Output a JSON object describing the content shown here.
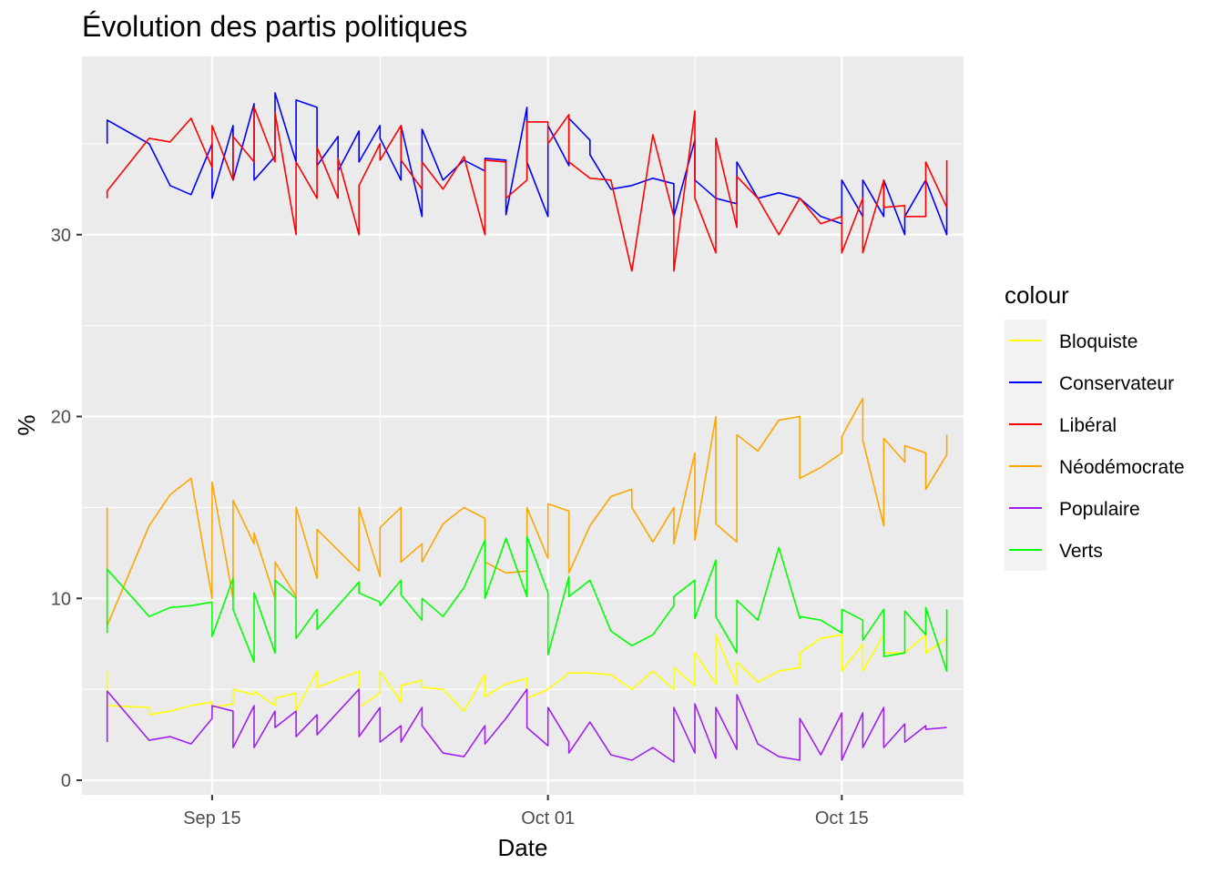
{
  "chart_data": {
    "type": "line",
    "title": "Évolution des partis politiques",
    "xlabel": "Date",
    "ylabel": "%",
    "x_ticks": [
      {
        "label": "Sep 15",
        "day": 15
      },
      {
        "label": "Oct 01",
        "day": 31
      },
      {
        "label": "Oct 15",
        "day": 45
      }
    ],
    "xlim_days": [
      8.8,
      50.8
    ],
    "y_ticks": [
      0,
      10,
      20,
      30
    ],
    "ylim": [
      -0.8,
      39.8
    ],
    "legend": {
      "title": "colour",
      "position": "right"
    },
    "series": [
      {
        "name": "Bloquiste",
        "color": "#ffff00",
        "days": [
          10,
          10,
          12,
          12,
          13,
          14,
          15,
          15,
          16,
          16,
          17,
          17,
          18,
          18,
          19,
          19,
          20,
          20,
          22,
          22,
          23,
          23,
          24,
          24,
          25,
          25,
          26,
          27,
          28,
          28,
          29,
          30,
          30,
          31,
          32,
          33,
          34,
          35,
          36,
          37,
          37,
          38,
          38,
          39,
          39,
          40,
          40,
          41,
          42,
          43,
          43,
          44,
          45,
          45,
          46,
          46,
          47,
          47,
          48,
          49,
          49,
          50
        ],
        "values": [
          6.0,
          4.1,
          4.0,
          3.6,
          3.8,
          4.1,
          4.3,
          4.0,
          4.2,
          5.0,
          4.7,
          4.9,
          4.1,
          4.5,
          4.8,
          3.8,
          6.0,
          5.1,
          6.0,
          4.0,
          4.8,
          6.0,
          4.3,
          5.2,
          5.5,
          5.1,
          5.0,
          3.8,
          5.8,
          4.6,
          5.3,
          5.6,
          4.5,
          5.0,
          5.9,
          5.9,
          5.8,
          5.0,
          6.0,
          5.0,
          6.2,
          5.2,
          7.0,
          5.3,
          8.0,
          5.2,
          6.5,
          5.4,
          6.0,
          6.2,
          7.0,
          7.8,
          8.0,
          6.0,
          7.5,
          6.0,
          8.0,
          7.0,
          7.0,
          8.0,
          7.0,
          7.8
        ]
      },
      {
        "name": "Conservateur",
        "color": "#0000ff",
        "days": [
          10,
          10,
          12,
          13,
          14,
          15,
          15,
          16,
          16,
          17,
          17,
          18,
          18,
          19,
          19,
          20,
          20,
          21,
          21,
          22,
          22,
          23,
          23,
          24,
          24,
          25,
          25,
          26,
          27,
          28,
          28,
          29,
          29,
          30,
          30,
          31,
          31,
          32,
          32,
          33,
          33,
          34,
          35,
          36,
          37,
          37,
          38,
          38,
          39,
          40,
          40,
          41,
          42,
          43,
          44,
          45,
          45,
          46,
          46,
          47,
          47,
          48,
          48,
          49,
          50,
          50
        ],
        "values": [
          35.0,
          36.3,
          35.0,
          32.7,
          32.2,
          35.0,
          32.0,
          36.0,
          33.0,
          37.2,
          33.0,
          34.3,
          37.8,
          34.0,
          37.4,
          37.0,
          33.8,
          35.4,
          33.5,
          35.7,
          34.0,
          36.0,
          35.3,
          33.0,
          36.0,
          31.0,
          35.8,
          33.0,
          34.1,
          33.5,
          34.2,
          34.1,
          31.1,
          37.0,
          34.0,
          31.0,
          36.0,
          33.8,
          36.4,
          35.2,
          34.4,
          32.5,
          32.7,
          33.1,
          32.8,
          31.0,
          35.2,
          33.0,
          32.0,
          31.7,
          34.0,
          32.0,
          32.3,
          32.0,
          31.0,
          30.6,
          33.0,
          31.0,
          33.0,
          31.0,
          33.0,
          30.0,
          31.0,
          33.0,
          30.0,
          32.2
        ]
      },
      {
        "name": "Libéral",
        "color": "#ff0000",
        "days": [
          10,
          10,
          12,
          13,
          14,
          15,
          15,
          16,
          16,
          17,
          17,
          18,
          18,
          19,
          19,
          20,
          20,
          21,
          21,
          22,
          22,
          23,
          23,
          24,
          24,
          25,
          25,
          26,
          27,
          28,
          28,
          29,
          29,
          30,
          30,
          31,
          31,
          32,
          32,
          33,
          34,
          35,
          36,
          37,
          37,
          38,
          38,
          39,
          39,
          40,
          40,
          41,
          42,
          43,
          44,
          45,
          45,
          46,
          46,
          47,
          47,
          48,
          48,
          49,
          49,
          50,
          50
        ],
        "values": [
          32.0,
          32.4,
          35.3,
          35.1,
          36.4,
          33.7,
          36.0,
          33.0,
          35.4,
          34.0,
          37.0,
          34.0,
          36.7,
          30.0,
          34.0,
          32.0,
          34.8,
          32.0,
          34.2,
          30.0,
          32.7,
          35.0,
          34.1,
          36.0,
          34.1,
          32.5,
          34.0,
          32.5,
          34.3,
          30.0,
          34.1,
          34.0,
          32.0,
          33.0,
          36.2,
          36.2,
          35.0,
          36.6,
          34.0,
          33.1,
          33.0,
          28.0,
          35.5,
          31.0,
          28.0,
          36.8,
          32.0,
          29.0,
          35.3,
          30.4,
          33.2,
          32.0,
          30.0,
          32.0,
          30.6,
          31.0,
          29.0,
          32.0,
          29.0,
          33.0,
          31.5,
          31.6,
          31.0,
          31.0,
          34.0,
          31.5,
          34.1
        ]
      },
      {
        "name": "Néodémocrate",
        "color": "#ffa500",
        "days": [
          10,
          10,
          12,
          13,
          14,
          15,
          15,
          16,
          16,
          17,
          17,
          18,
          18,
          19,
          19,
          20,
          20,
          22,
          22,
          23,
          23,
          24,
          24,
          25,
          25,
          26,
          27,
          28,
          28,
          29,
          30,
          30,
          31,
          31,
          32,
          32,
          33,
          34,
          35,
          35,
          36,
          37,
          37,
          38,
          38,
          39,
          39,
          40,
          40,
          41,
          42,
          43,
          43,
          44,
          45,
          45,
          46,
          46,
          47,
          47,
          48,
          48,
          49,
          49,
          50,
          50
        ],
        "values": [
          15.0,
          8.5,
          14.0,
          15.7,
          16.6,
          10.0,
          16.4,
          10.0,
          15.4,
          13.0,
          13.6,
          10.0,
          12.0,
          10.1,
          15.0,
          11.1,
          13.8,
          11.5,
          15.0,
          11.2,
          13.9,
          15.0,
          12.0,
          13.0,
          12.0,
          14.1,
          15.0,
          14.4,
          12.0,
          11.4,
          11.5,
          15.0,
          12.2,
          15.2,
          14.8,
          11.4,
          14.0,
          15.6,
          16.0,
          15.0,
          13.1,
          15.0,
          13.0,
          18.0,
          13.2,
          20.0,
          14.1,
          13.1,
          19.0,
          18.1,
          19.8,
          20.0,
          16.6,
          17.2,
          18.0,
          18.9,
          21.0,
          18.7,
          14.0,
          18.8,
          17.5,
          18.4,
          18.0,
          16.0,
          17.9,
          19.0
        ]
      },
      {
        "name": "Populaire",
        "color": "#a020f0",
        "days": [
          10,
          10,
          12,
          13,
          14,
          15,
          15,
          16,
          16,
          17,
          17,
          18,
          18,
          19,
          19,
          20,
          20,
          22,
          22,
          23,
          23,
          24,
          24,
          25,
          25,
          26,
          27,
          28,
          28,
          29,
          30,
          30,
          31,
          31,
          32,
          32,
          33,
          34,
          35,
          36,
          37,
          37,
          38,
          38,
          39,
          39,
          40,
          40,
          41,
          42,
          43,
          43,
          44,
          45,
          45,
          46,
          46,
          47,
          47,
          48,
          48,
          49,
          49,
          50
        ],
        "values": [
          2.1,
          4.9,
          2.2,
          2.4,
          2.0,
          3.4,
          4.1,
          3.8,
          1.8,
          4.1,
          1.8,
          3.8,
          2.9,
          3.8,
          2.4,
          3.6,
          2.5,
          5.0,
          2.4,
          4.0,
          2.1,
          3.0,
          2.1,
          4.0,
          3.0,
          1.5,
          1.3,
          3.0,
          2.0,
          3.4,
          5.0,
          2.9,
          1.9,
          4.0,
          2.1,
          1.5,
          3.2,
          1.4,
          1.1,
          1.8,
          1.0,
          4.0,
          1.5,
          4.2,
          1.2,
          4.0,
          1.7,
          4.7,
          2.0,
          1.3,
          1.1,
          3.4,
          1.4,
          3.7,
          1.1,
          3.7,
          1.8,
          4.0,
          1.8,
          3.1,
          2.1,
          3.0,
          2.8,
          2.9
        ]
      },
      {
        "name": "Verts",
        "color": "#00ff00",
        "days": [
          10,
          10,
          12,
          13,
          14,
          15,
          15,
          16,
          16,
          17,
          17,
          18,
          18,
          19,
          19,
          20,
          20,
          22,
          22,
          23,
          23,
          24,
          24,
          25,
          25,
          26,
          27,
          28,
          28,
          29,
          30,
          30,
          31,
          31,
          32,
          32,
          33,
          34,
          35,
          36,
          37,
          37,
          38,
          38,
          39,
          39,
          40,
          40,
          41,
          42,
          43,
          43,
          44,
          45,
          45,
          46,
          46,
          47,
          47,
          48,
          48,
          49,
          49,
          50,
          50
        ],
        "values": [
          8.1,
          11.6,
          9.0,
          9.5,
          9.6,
          9.8,
          7.9,
          11.1,
          9.4,
          6.5,
          10.3,
          7.0,
          11.0,
          10.0,
          7.8,
          9.4,
          8.3,
          10.9,
          10.3,
          9.8,
          9.6,
          11.0,
          10.2,
          8.8,
          10.0,
          9.0,
          10.6,
          13.2,
          10.0,
          13.3,
          10.1,
          13.4,
          10.3,
          6.9,
          11.2,
          10.1,
          11.0,
          8.2,
          7.4,
          8.0,
          9.6,
          10.1,
          11.0,
          8.9,
          12.1,
          9.0,
          7.0,
          9.9,
          8.8,
          12.8,
          8.9,
          9.0,
          8.8,
          8.1,
          9.4,
          8.8,
          7.7,
          9.4,
          6.8,
          7.0,
          9.3,
          8.0,
          9.5,
          6.0,
          9.4
        ]
      }
    ]
  }
}
